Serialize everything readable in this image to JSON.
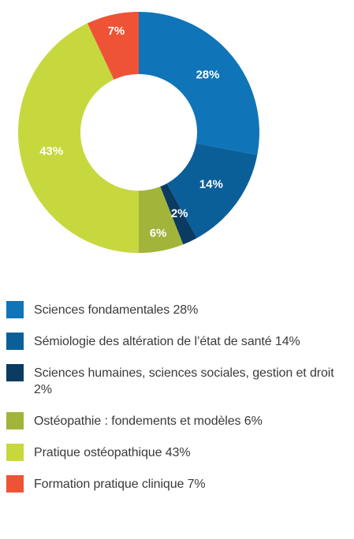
{
  "chart_data": {
    "type": "pie",
    "donut": true,
    "start_angle_deg": 0,
    "direction": "clockwise",
    "slices": [
      {
        "label": "Sciences fondamentales",
        "value": 28,
        "value_label": "28%",
        "color": "#0f74b8"
      },
      {
        "label": "Sémiologie des altération de l'état de santé",
        "value": 14,
        "value_label": "14%",
        "color": "#0b5f99"
      },
      {
        "label": "Sciences humaines, sciences sociales, gestion et droit",
        "value": 2,
        "value_label": "2%",
        "color": "#0b3b60"
      },
      {
        "label": "Ostéopathie : fondements et modèles",
        "value": 6,
        "value_label": "6%",
        "color": "#a3b43a"
      },
      {
        "label": "Pratique ostéopathique",
        "value": 43,
        "value_label": "43%",
        "color": "#c7d83f"
      },
      {
        "label": "Formation pratique clinique",
        "value": 7,
        "value_label": "7%",
        "color": "#ee5336"
      }
    ]
  },
  "legend": {
    "items": [
      {
        "text": "Sciences fondamentales 28%",
        "color": "#0f74b8"
      },
      {
        "text": "Sémiologie des altération de l’état de santé 14%",
        "color": "#0b5f99"
      },
      {
        "text": "Sciences humaines, sciences sociales, gestion et droit 2%",
        "color": "#0b3b60"
      },
      {
        "text": "Ostéopathie : fondements et modèles 6%",
        "color": "#a3b43a"
      },
      {
        "text": "Pratique ostéopathique 43%",
        "color": "#c7d83f"
      },
      {
        "text": "Formation pratique clinique 7%",
        "color": "#ee5336"
      }
    ]
  }
}
